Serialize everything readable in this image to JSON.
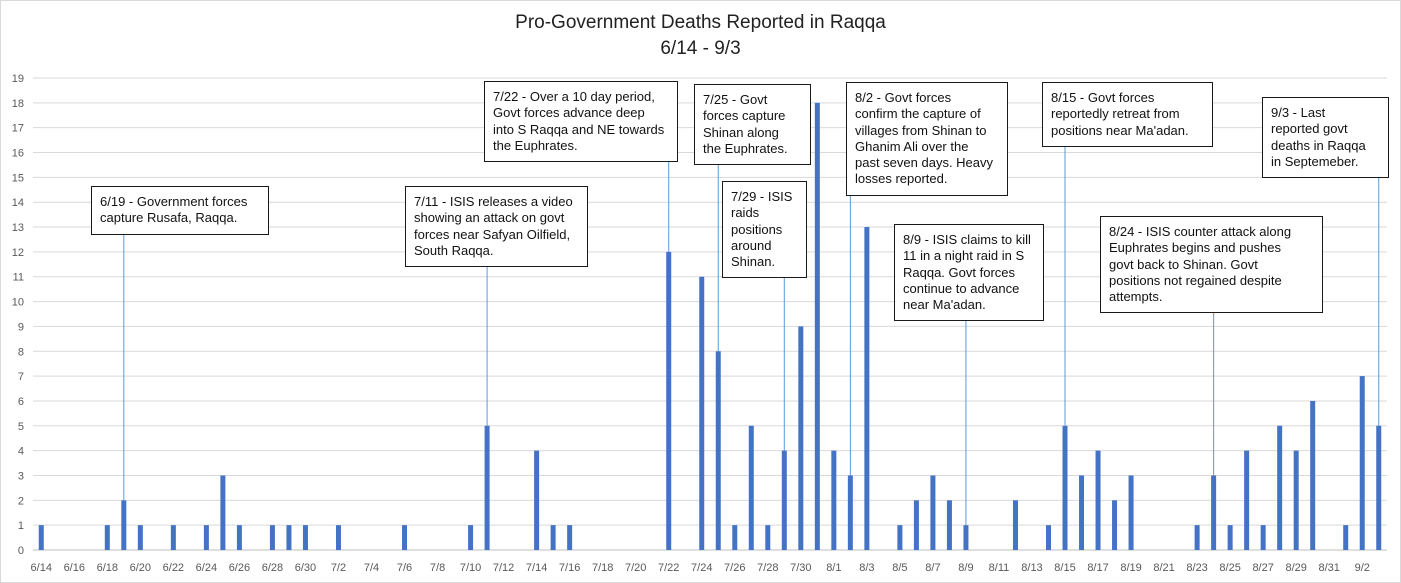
{
  "chart_data": {
    "type": "bar",
    "title": "Pro-Government  Deaths Reported  in Raqqa",
    "subtitle": "6/14 - 9/3",
    "xlabel": "",
    "ylabel": "",
    "ylim": [
      0,
      19
    ],
    "yticks": [
      0,
      1,
      2,
      3,
      4,
      5,
      6,
      7,
      8,
      9,
      10,
      11,
      12,
      13,
      14,
      15,
      16,
      17,
      18,
      19
    ],
    "grid": true,
    "bar_color": "#4472c4",
    "x_tick_labels": [
      "6/14",
      "6/16",
      "6/18",
      "6/20",
      "6/22",
      "6/24",
      "6/26",
      "6/28",
      "6/30",
      "7/2",
      "7/4",
      "7/6",
      "7/8",
      "7/10",
      "7/12",
      "7/14",
      "7/16",
      "7/18",
      "7/20",
      "7/22",
      "7/24",
      "7/26",
      "7/28",
      "7/30",
      "8/1",
      "8/3",
      "8/5",
      "8/7",
      "8/9",
      "8/11",
      "8/13",
      "8/15",
      "8/17",
      "8/19",
      "8/21",
      "8/23",
      "8/25",
      "8/27",
      "8/29",
      "8/31",
      "9/2"
    ],
    "categories": [
      "6/14",
      "6/15",
      "6/16",
      "6/17",
      "6/18",
      "6/19",
      "6/20",
      "6/21",
      "6/22",
      "6/23",
      "6/24",
      "6/25",
      "6/26",
      "6/27",
      "6/28",
      "6/29",
      "6/30",
      "7/1",
      "7/2",
      "7/3",
      "7/4",
      "7/5",
      "7/6",
      "7/7",
      "7/8",
      "7/9",
      "7/10",
      "7/11",
      "7/12",
      "7/13",
      "7/14",
      "7/15",
      "7/16",
      "7/17",
      "7/18",
      "7/19",
      "7/20",
      "7/21",
      "7/22",
      "7/23",
      "7/24",
      "7/25",
      "7/26",
      "7/27",
      "7/28",
      "7/29",
      "7/30",
      "7/31",
      "8/1",
      "8/2",
      "8/3",
      "8/4",
      "8/5",
      "8/6",
      "8/7",
      "8/8",
      "8/9",
      "8/10",
      "8/11",
      "8/12",
      "8/13",
      "8/14",
      "8/15",
      "8/16",
      "8/17",
      "8/18",
      "8/19",
      "8/20",
      "8/21",
      "8/22",
      "8/23",
      "8/24",
      "8/25",
      "8/26",
      "8/27",
      "8/28",
      "8/29",
      "8/30",
      "8/31",
      "9/1",
      "9/2",
      "9/3"
    ],
    "values": [
      1,
      0,
      0,
      0,
      1,
      2,
      1,
      0,
      1,
      0,
      1,
      3,
      1,
      0,
      1,
      1,
      1,
      0,
      1,
      0,
      0,
      0,
      1,
      0,
      0,
      0,
      1,
      5,
      0,
      0,
      4,
      1,
      1,
      0,
      0,
      0,
      0,
      0,
      12,
      0,
      11,
      8,
      1,
      5,
      1,
      4,
      9,
      18,
      4,
      3,
      13,
      0,
      1,
      2,
      3,
      2,
      1,
      0,
      0,
      2,
      0,
      1,
      5,
      3,
      4,
      2,
      3,
      0,
      0,
      0,
      1,
      3,
      1,
      4,
      1,
      5,
      4,
      6,
      0,
      1,
      7,
      5
    ],
    "annotations": [
      {
        "date": "6/19",
        "text": "6/19 - Government forces\ncapture Rusafa, Raqqa."
      },
      {
        "date": "7/11",
        "text": "7/11 - ISIS releases a video\nshowing an attack on govt\nforces near Safyan Oilfield,\nSouth Raqqa."
      },
      {
        "date": "7/22",
        "text": "7/22 - Over a 10 day period,\nGovt forces advance deep\ninto S Raqqa and NE towards\nthe Euphrates."
      },
      {
        "date": "7/25",
        "text": "7/25 - Govt\nforces capture\nShinan along\nthe Euphrates."
      },
      {
        "date": "7/29",
        "text": "7/29 - ISIS\nraids\npositions\naround\nShinan."
      },
      {
        "date": "8/2",
        "text": "8/2 - Govt forces\nconfirm the capture of\nvillages from Shinan to\nGhanim Ali over the\npast seven days. Heavy\nlosses reported."
      },
      {
        "date": "8/9",
        "text": "8/9 - ISIS claims to kill\n11 in a night raid in S\nRaqqa. Govt forces\ncontinue to advance\nnear Ma'adan."
      },
      {
        "date": "8/15",
        "text": "8/15 - Govt forces\nreportedly retreat from\npositions near Ma'adan."
      },
      {
        "date": "8/24",
        "text": "8/24 - ISIS counter attack along\nEuphrates begins and pushes\ngovt back to Shinan. Govt\npositions not regained despite\nattempts."
      },
      {
        "date": "9/3",
        "text": "9/3 - Last\nreported govt\ndeaths in Raqqa\nin Septemeber."
      }
    ]
  }
}
